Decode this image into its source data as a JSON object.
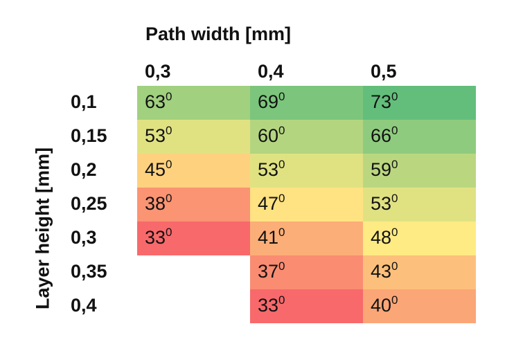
{
  "chart_data": {
    "type": "heatmap",
    "xlabel": "Path width [mm]",
    "ylabel": "Layer height [mm]",
    "x_categories": [
      "0,3",
      "0,4",
      "0,5"
    ],
    "y_categories": [
      "0,1",
      "0,15",
      "0,2",
      "0,25",
      "0,3",
      "0,35",
      "0,4"
    ],
    "unit_superscript": "0",
    "cells": [
      [
        "63",
        "69",
        "73"
      ],
      [
        "53",
        "60",
        "66"
      ],
      [
        "45",
        "53",
        "59"
      ],
      [
        "38",
        "47",
        "53"
      ],
      [
        "33",
        "41",
        "48"
      ],
      [
        null,
        "37",
        "43"
      ],
      [
        null,
        "33",
        "40"
      ]
    ],
    "values": [
      [
        63,
        69,
        73
      ],
      [
        53,
        60,
        66
      ],
      [
        45,
        53,
        59
      ],
      [
        38,
        47,
        53
      ],
      [
        33,
        41,
        48
      ],
      [
        null,
        37,
        43
      ],
      [
        null,
        33,
        40
      ]
    ],
    "color_scale": {
      "low": "#f8696b",
      "mid": "#ffeb84",
      "high": "#63be7b",
      "min": 33,
      "mid_value": 48,
      "max": 73
    }
  }
}
